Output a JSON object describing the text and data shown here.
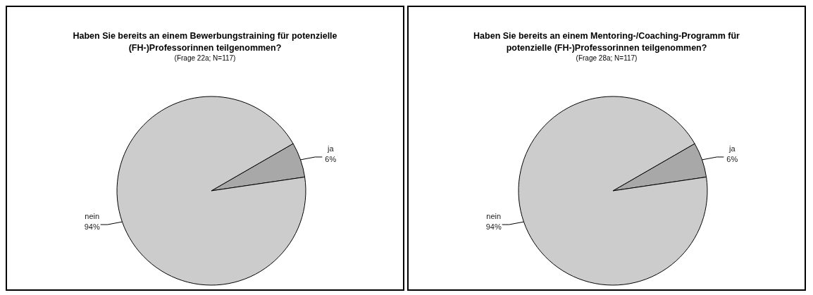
{
  "chart_data": [
    {
      "type": "pie",
      "title": "Haben Sie bereits an einem Bewerbungstraining für potenzielle (FH-)Professorinnen teilgenommen?",
      "subtitle": "(Frage 22a; N=117)",
      "categories": [
        "ja",
        "nein"
      ],
      "values": [
        6,
        94
      ],
      "colors": [
        "#a8a8a8",
        "#cccccc"
      ],
      "value_labels": [
        "6%",
        "94%"
      ]
    },
    {
      "type": "pie",
      "title": "Haben Sie bereits an einem Mentoring-/Coaching-Programm für potenzielle (FH-)Professorinnen teilgenommen?",
      "subtitle": "(Frage 28a; N=117)",
      "categories": [
        "ja",
        "nein"
      ],
      "values": [
        6,
        94
      ],
      "colors": [
        "#a8a8a8",
        "#cccccc"
      ],
      "value_labels": [
        "6%",
        "94%"
      ]
    }
  ]
}
